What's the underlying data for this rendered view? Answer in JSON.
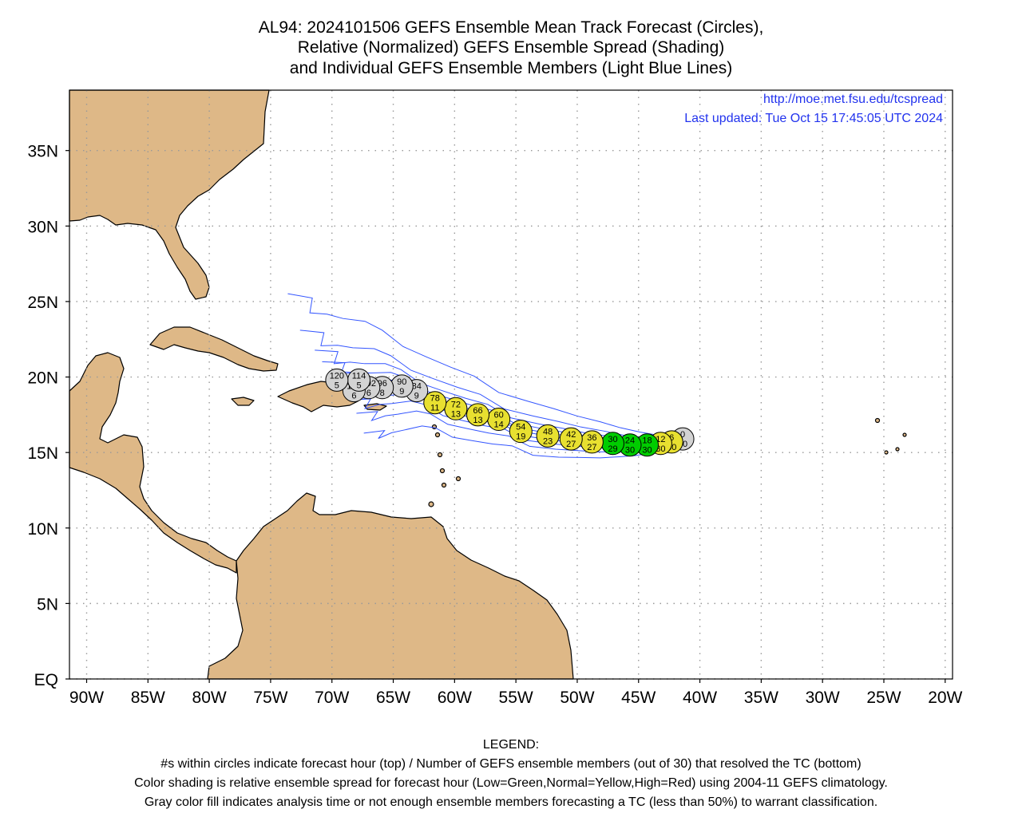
{
  "title": {
    "line1": "AL94: 2024101506 GEFS Ensemble Mean Track Forecast (Circles),",
    "line2": "Relative (Normalized) GEFS Ensemble Spread (Shading)",
    "line3": "and Individual GEFS Ensemble Members (Light Blue Lines)"
  },
  "annotations": {
    "url": "http://moe.met.fsu.edu/tcspread",
    "updated": "Last updated: Tue Oct 15 17:45:05 UTC 2024"
  },
  "axes": {
    "lat_ticks": [
      {
        "lat": 35,
        "label": "35N"
      },
      {
        "lat": 30,
        "label": "30N"
      },
      {
        "lat": 25,
        "label": "25N"
      },
      {
        "lat": 20,
        "label": "20N"
      },
      {
        "lat": 15,
        "label": "15N"
      },
      {
        "lat": 10,
        "label": "10N"
      },
      {
        "lat": 5,
        "label": "5N"
      },
      {
        "lat": 0,
        "label": "EQ"
      }
    ],
    "lon_ticks": [
      {
        "lon": -90,
        "label": "90W"
      },
      {
        "lon": -85,
        "label": "85W"
      },
      {
        "lon": -80,
        "label": "80W"
      },
      {
        "lon": -75,
        "label": "75W"
      },
      {
        "lon": -70,
        "label": "70W"
      },
      {
        "lon": -65,
        "label": "65W"
      },
      {
        "lon": -60,
        "label": "60W"
      },
      {
        "lon": -55,
        "label": "55W"
      },
      {
        "lon": -50,
        "label": "50W"
      },
      {
        "lon": -45,
        "label": "45W"
      },
      {
        "lon": -40,
        "label": "40W"
      },
      {
        "lon": -35,
        "label": "35W"
      },
      {
        "lon": -30,
        "label": "30W"
      },
      {
        "lon": -25,
        "label": "25W"
      },
      {
        "lon": -20,
        "label": "20W"
      }
    ],
    "lon_range": [
      -91.4,
      -19.4
    ],
    "lat_range": [
      0,
      39
    ]
  },
  "colors": {
    "land": "#deb887",
    "water": "#ffffff",
    "member_line": "#3355ff",
    "low_spread": "#00cc00",
    "normal_spread": "#e8e030",
    "no_classification": "#d3d3d3",
    "url_text": "#2233ee"
  },
  "track": [
    {
      "hour": "0",
      "members": "30",
      "lon": -41.4,
      "lat": 15.9,
      "shade": "gray"
    },
    {
      "hour": "6",
      "members": "30",
      "lon": -42.3,
      "lat": 15.7,
      "shade": "yellow"
    },
    {
      "hour": "12",
      "members": "30",
      "lon": -43.2,
      "lat": 15.6,
      "shade": "yellow"
    },
    {
      "hour": "18",
      "members": "30",
      "lon": -44.3,
      "lat": 15.5,
      "shade": "green"
    },
    {
      "hour": "24",
      "members": "30",
      "lon": -45.7,
      "lat": 15.5,
      "shade": "green"
    },
    {
      "hour": "30",
      "members": "29",
      "lon": -47.1,
      "lat": 15.6,
      "shade": "green"
    },
    {
      "hour": "36",
      "members": "27",
      "lon": -48.8,
      "lat": 15.7,
      "shade": "yellow"
    },
    {
      "hour": "42",
      "members": "27",
      "lon": -50.5,
      "lat": 15.9,
      "shade": "yellow"
    },
    {
      "hour": "48",
      "members": "23",
      "lon": -52.4,
      "lat": 16.1,
      "shade": "yellow"
    },
    {
      "hour": "54",
      "members": "19",
      "lon": -54.6,
      "lat": 16.4,
      "shade": "yellow"
    },
    {
      "hour": "60",
      "members": "14",
      "lon": -56.4,
      "lat": 17.2,
      "shade": "yellow"
    },
    {
      "hour": "66",
      "members": "13",
      "lon": -58.1,
      "lat": 17.5,
      "shade": "yellow"
    },
    {
      "hour": "72",
      "members": "13",
      "lon": -59.9,
      "lat": 17.9,
      "shade": "yellow"
    },
    {
      "hour": "78",
      "members": "11",
      "lon": -61.6,
      "lat": 18.3,
      "shade": "yellow"
    },
    {
      "hour": "84",
      "members": "9",
      "lon": -63.1,
      "lat": 19.1,
      "shade": "gray"
    },
    {
      "hour": "90",
      "members": "9",
      "lon": -64.3,
      "lat": 19.4,
      "shade": "gray"
    },
    {
      "hour": "96",
      "members": "8",
      "lon": -65.9,
      "lat": 19.3,
      "shade": "gray"
    },
    {
      "hour": "102",
      "members": "6",
      "lon": -67.0,
      "lat": 19.3,
      "shade": "gray"
    },
    {
      "hour": "108",
      "members": "6",
      "lon": -68.2,
      "lat": 19.1,
      "shade": "gray"
    },
    {
      "hour": "114",
      "members": "5",
      "lon": -67.8,
      "lat": 19.8,
      "shade": "gray"
    },
    {
      "hour": "120",
      "members": "5",
      "lon": -69.6,
      "lat": 19.8,
      "shade": "gray"
    }
  ],
  "legend": {
    "heading": "LEGEND:",
    "line1": "#s within circles indicate forecast hour (top) / Number of GEFS ensemble members (out of 30) that resolved the TC (bottom)",
    "line2": "Color shading is relative ensemble spread for forecast hour (Low=Green,Normal=Yellow,High=Red) using 2004-11 GEFS climatology.",
    "line3": "Gray color fill indicates analysis time or not enough ensemble members forecasting a TC (less than 50%) to warrant classification."
  }
}
